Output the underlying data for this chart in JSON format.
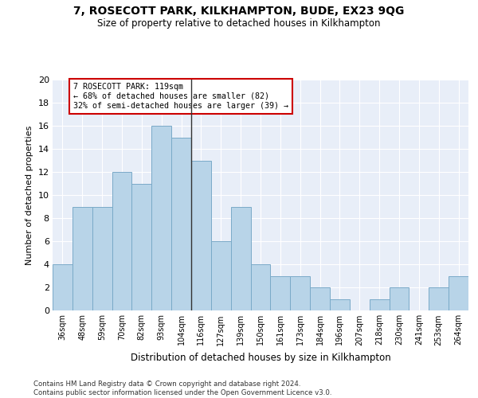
{
  "title": "7, ROSECOTT PARK, KILKHAMPTON, BUDE, EX23 9QG",
  "subtitle": "Size of property relative to detached houses in Kilkhampton",
  "xlabel": "Distribution of detached houses by size in Kilkhampton",
  "ylabel": "Number of detached properties",
  "categories": [
    "36sqm",
    "48sqm",
    "59sqm",
    "70sqm",
    "82sqm",
    "93sqm",
    "104sqm",
    "116sqm",
    "127sqm",
    "139sqm",
    "150sqm",
    "161sqm",
    "173sqm",
    "184sqm",
    "196sqm",
    "207sqm",
    "218sqm",
    "230sqm",
    "241sqm",
    "253sqm",
    "264sqm"
  ],
  "values": [
    4,
    9,
    9,
    12,
    11,
    16,
    15,
    13,
    6,
    9,
    4,
    3,
    3,
    2,
    1,
    0,
    1,
    2,
    0,
    2,
    3
  ],
  "highlight_index": 7,
  "bar_color": "#b8d4e8",
  "bar_edge_color": "#7aaac8",
  "highlight_line_color": "#333333",
  "annotation_box_color": "#ffffff",
  "annotation_border_color": "#cc0000",
  "annotation_text_line1": "7 ROSECOTT PARK: 119sqm",
  "annotation_text_line2": "← 68% of detached houses are smaller (82)",
  "annotation_text_line3": "32% of semi-detached houses are larger (39) →",
  "ylim": [
    0,
    20
  ],
  "yticks": [
    0,
    2,
    4,
    6,
    8,
    10,
    12,
    14,
    16,
    18,
    20
  ],
  "background_color": "#e8eef8",
  "footer_line1": "Contains HM Land Registry data © Crown copyright and database right 2024.",
  "footer_line2": "Contains public sector information licensed under the Open Government Licence v3.0."
}
